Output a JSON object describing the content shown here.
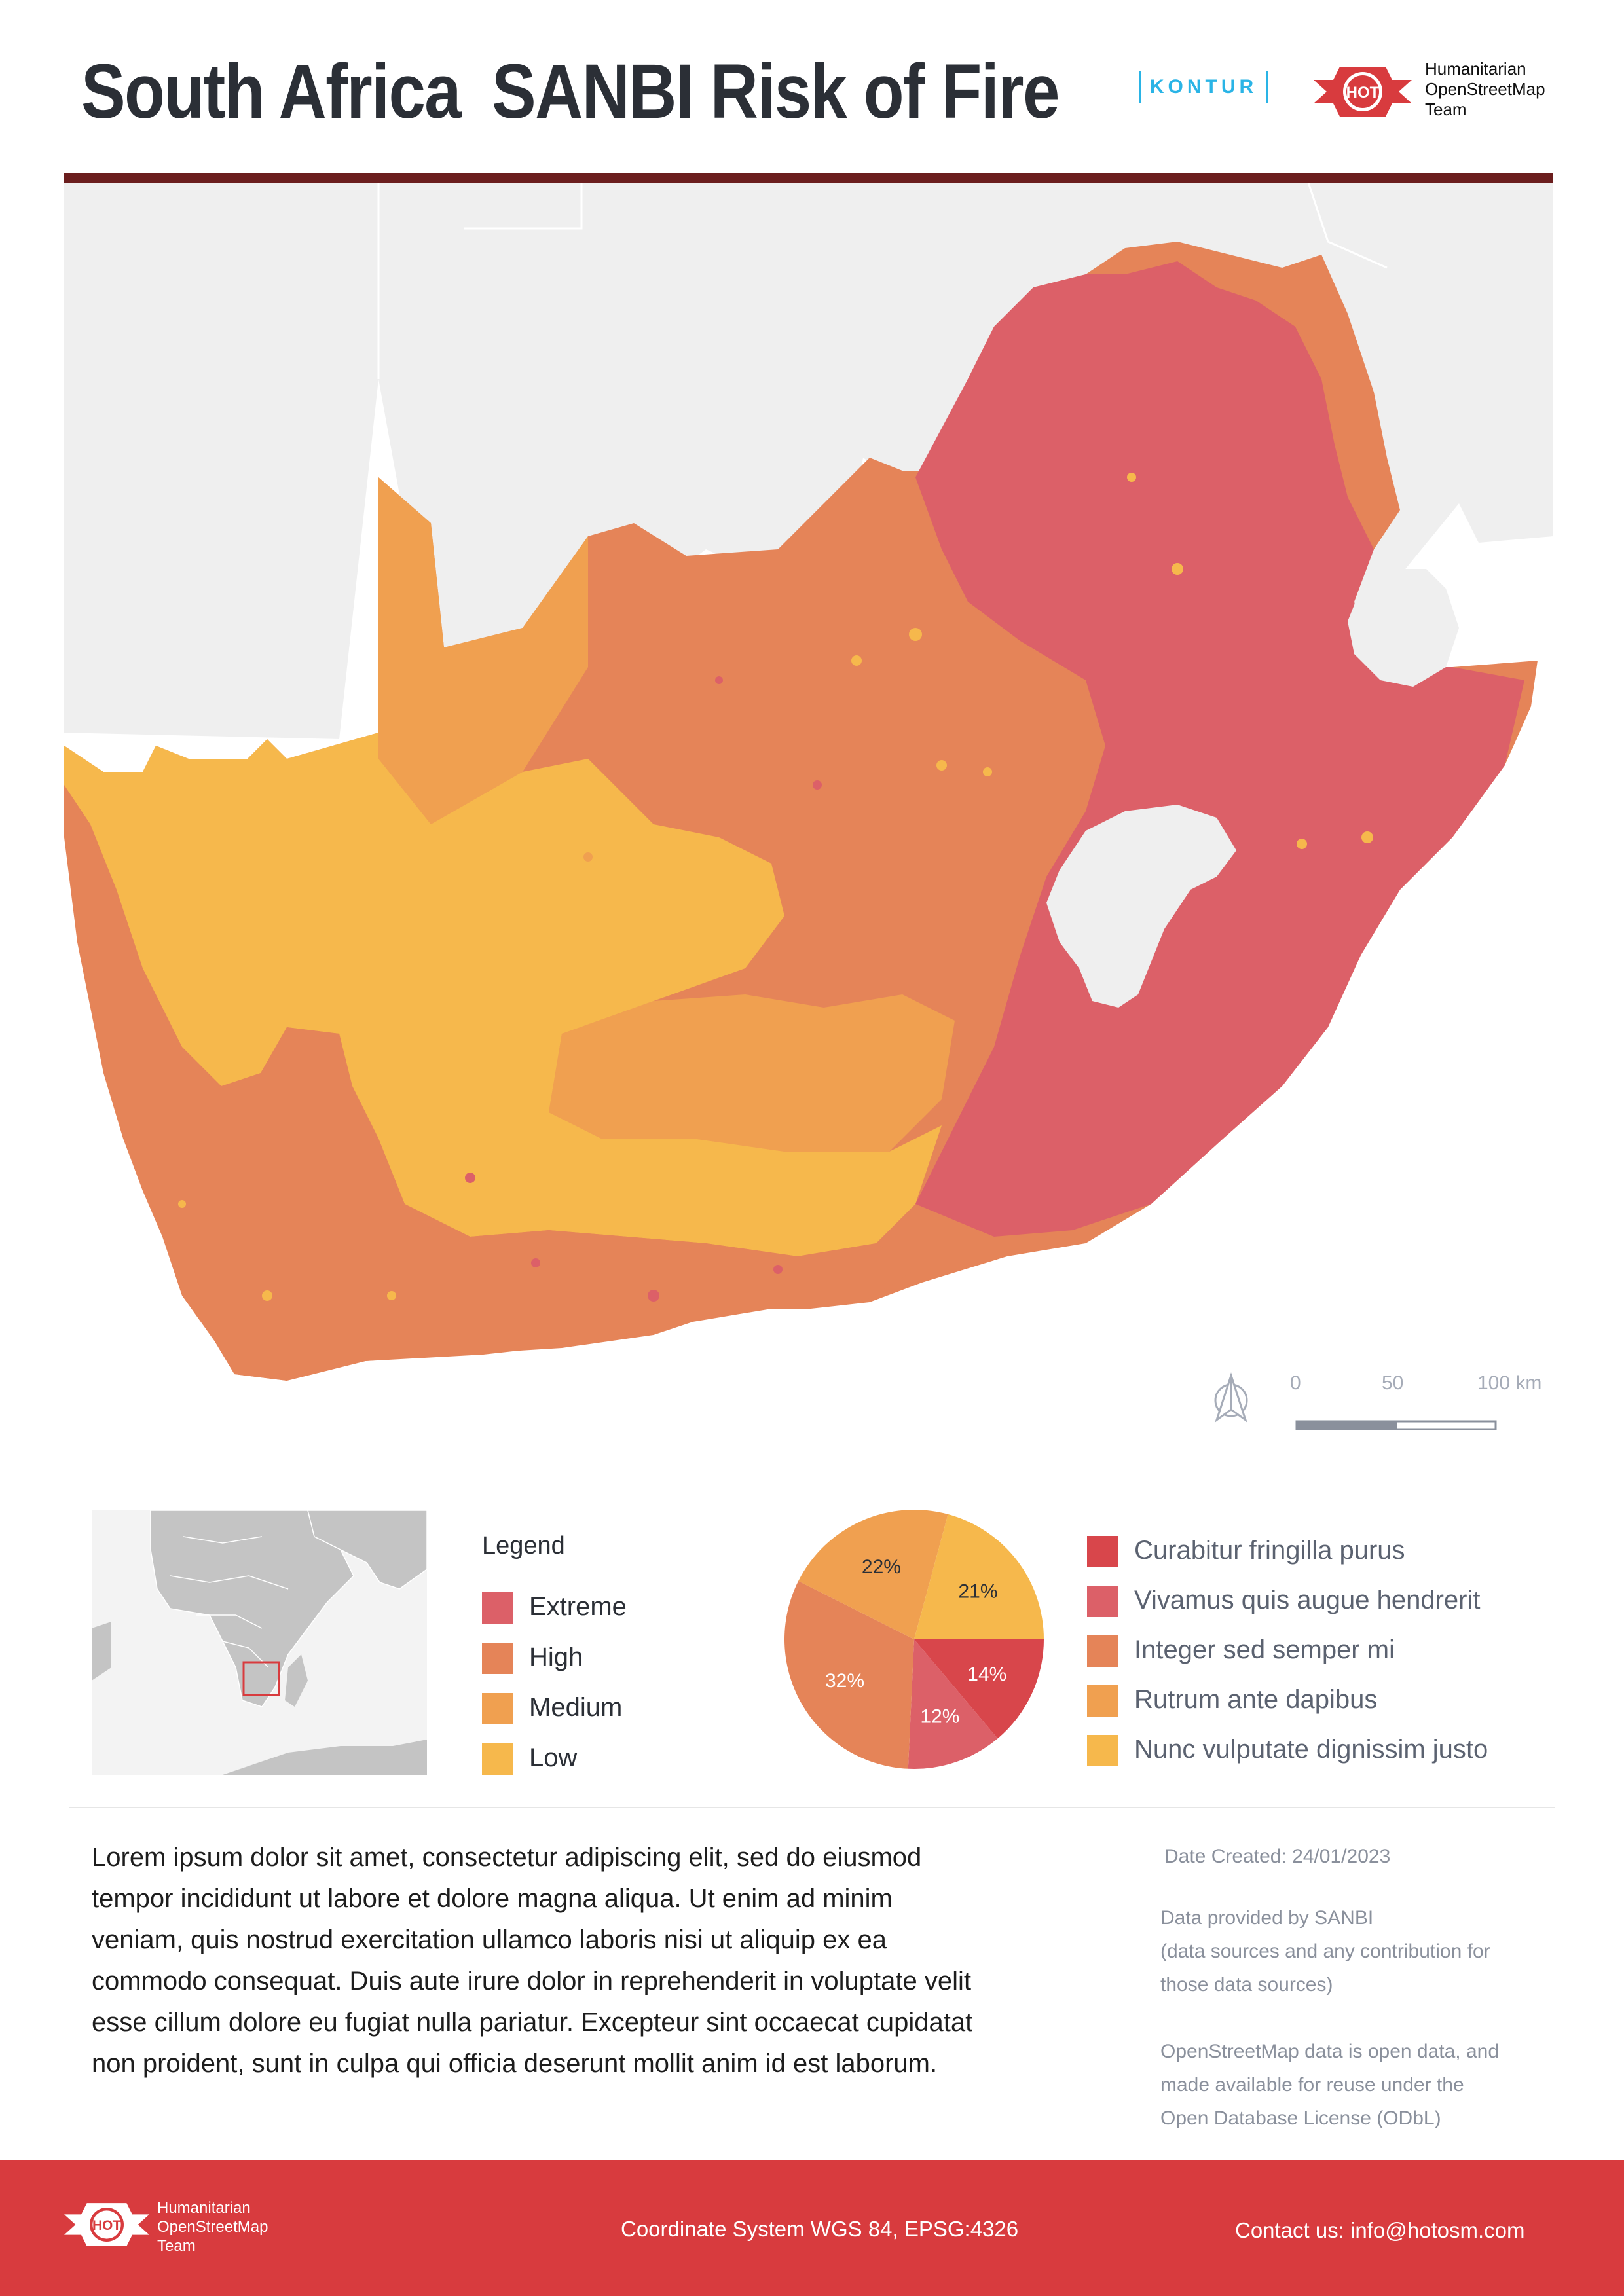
{
  "header": {
    "title_country": "South Africa",
    "title_topic": "SANBI Risk of Fire",
    "kontur_logo": "KONTUR",
    "hot_logo": "HOT",
    "hot_name_line1": "Humanitarian",
    "hot_name_line2": "OpenStreetMap",
    "hot_name_line3": "Team"
  },
  "map": {
    "colors": {
      "extreme": "#dc6068",
      "high": "#e58458",
      "medium": "#f0a050",
      "low": "#f6b84c",
      "background": "#f0f0f0",
      "accent_rule": "#6b1e1e",
      "footer": "#d83b3e"
    },
    "scale_bar": {
      "labels": [
        "0",
        "50",
        "100 km"
      ]
    },
    "north_arrow_icon": "north-arrow-icon"
  },
  "legend": {
    "title": "Legend",
    "items": [
      {
        "label": "Extreme",
        "color": "#dc6068"
      },
      {
        "label": "High",
        "color": "#e58458"
      },
      {
        "label": "Medium",
        "color": "#f0a050"
      },
      {
        "label": "Low",
        "color": "#f6b84c"
      }
    ]
  },
  "pie": {
    "slices": [
      {
        "label": "Curabitur fringilla purus",
        "value": 14,
        "text": "14%",
        "color": "#d8464b"
      },
      {
        "label": "Vivamus quis augue hendrerit",
        "value": 12,
        "text": "12%",
        "color": "#dc6068"
      },
      {
        "label": "Integer sed semper mi",
        "value": 32,
        "text": "32%",
        "color": "#e58458"
      },
      {
        "label": "Rutrum ante dapibus",
        "value": 22,
        "text": "22%",
        "color": "#f0a050"
      },
      {
        "label": "Nunc vulputate dignissim justo",
        "value": 21,
        "text": "21%",
        "color": "#f6b84c"
      }
    ]
  },
  "description": "Lorem ipsum dolor sit amet, consectetur adipiscing elit, sed do eiusmod tempor incididunt ut labore et dolore magna aliqua. Ut enim ad minim veniam, quis nostrud exercitation ullamco laboris nisi ut aliquip ex ea commodo consequat. Duis aute irure dolor in reprehenderit in voluptate velit esse cillum dolore eu fugiat nulla pariatur. Excepteur sint occaecat cupidatat non proident, sunt in culpa qui officia deserunt mollit anim id est laborum.",
  "meta": {
    "date_created": "Date Created: 24/01/2023",
    "data_provider_1": "Data provided by SANBI",
    "data_provider_2": "(data sources and any contribution for",
    "data_provider_3": "those data sources)",
    "osm_1": "OpenStreetMap data is open data, and",
    "osm_2": "made available for reuse under the",
    "osm_3": "Open Database License (ODbL)"
  },
  "footer": {
    "hot_name_line1": "Humanitarian",
    "hot_name_line2": "OpenStreetMap",
    "hot_name_line3": "Team",
    "coordinate_system": "Coordinate System WGS 84, EPSG:4326",
    "contact": "Contact us: info@hotosm.com"
  }
}
